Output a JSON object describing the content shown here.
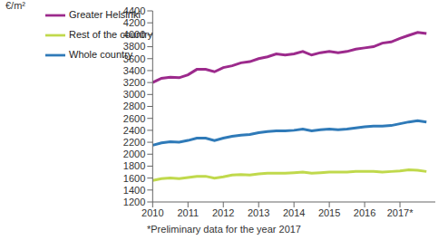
{
  "chart_data": {
    "type": "line",
    "y_label": "€/m²",
    "annotation": "*Preliminary data for the year 2017",
    "x": [
      2010,
      2010.25,
      2010.5,
      2010.75,
      2011,
      2011.25,
      2011.5,
      2011.75,
      2012,
      2012.25,
      2012.5,
      2012.75,
      2013,
      2013.25,
      2013.5,
      2013.75,
      2014,
      2014.25,
      2014.5,
      2014.75,
      2015,
      2015.25,
      2015.5,
      2015.75,
      2016,
      2016.25,
      2016.5,
      2016.75,
      2017,
      2017.25,
      2017.5,
      2017.75
    ],
    "series": [
      {
        "name": "Greater Helsinki",
        "color": "#9c2a8c",
        "values": [
          3200,
          3270,
          3290,
          3280,
          3330,
          3420,
          3420,
          3380,
          3450,
          3480,
          3530,
          3550,
          3600,
          3630,
          3680,
          3660,
          3680,
          3720,
          3660,
          3700,
          3720,
          3700,
          3720,
          3760,
          3780,
          3800,
          3860,
          3880,
          3940,
          3990,
          4040,
          4020
        ]
      },
      {
        "name": "Whole country",
        "color": "#2f7ab8",
        "values": [
          2150,
          2190,
          2210,
          2200,
          2230,
          2270,
          2270,
          2230,
          2270,
          2300,
          2320,
          2330,
          2360,
          2380,
          2390,
          2390,
          2400,
          2420,
          2390,
          2410,
          2420,
          2410,
          2420,
          2440,
          2460,
          2470,
          2470,
          2480,
          2510,
          2540,
          2560,
          2540
        ]
      },
      {
        "name": "Rest of the country",
        "color": "#c0d94c",
        "values": [
          1560,
          1590,
          1600,
          1590,
          1610,
          1630,
          1630,
          1600,
          1620,
          1650,
          1660,
          1650,
          1670,
          1680,
          1680,
          1680,
          1690,
          1700,
          1680,
          1690,
          1700,
          1700,
          1700,
          1710,
          1710,
          1710,
          1700,
          1710,
          1720,
          1740,
          1730,
          1710
        ]
      }
    ],
    "xlim": [
      2010,
      2018
    ],
    "xticks": [
      2010,
      2011,
      2012,
      2013,
      2014,
      2015,
      2016,
      {
        "value": 2017,
        "label": "2017*"
      }
    ],
    "ylim": [
      1200,
      4400
    ],
    "yticks": [
      1200,
      1400,
      1600,
      1800,
      2000,
      2200,
      2400,
      2600,
      2800,
      3000,
      3200,
      3400,
      3600,
      3800,
      4000,
      4200,
      4400
    ],
    "grid": false,
    "legend": "upper left"
  }
}
